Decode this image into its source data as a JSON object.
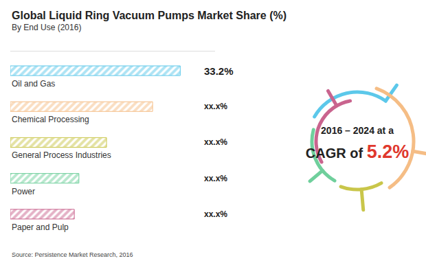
{
  "chart_data": {
    "type": "bar",
    "orientation": "horizontal",
    "title": "Global Liquid Ring Vacuum Pumps Market Share (%)",
    "subtitle": "By End Use (2016)",
    "source": "Source: Persistence Market Research, 2016",
    "categories": [
      "Oil and Gas",
      "Chemical Processing",
      "General Process Industries",
      "Power",
      "Paper and Pulp"
    ],
    "values": [
      33.2,
      27.8,
      18.8,
      13.4,
      12.5
    ],
    "value_labels": [
      "33.2%",
      "xx.x%",
      "xx.x%",
      "xx.x%",
      "xx.x%"
    ],
    "colors": [
      "#5cc8ea",
      "#f5bd85",
      "#c9c64a",
      "#6fcf9c",
      "#c9648e"
    ],
    "xlim": [
      0,
      40
    ],
    "xticks": [],
    "data_labels": true,
    "tick_labels": false,
    "grid": false,
    "annotations": [
      {
        "text": "2016 – 2024 at a"
      },
      {
        "text": "CAGR of"
      },
      {
        "text": "5.2%"
      }
    ]
  }
}
